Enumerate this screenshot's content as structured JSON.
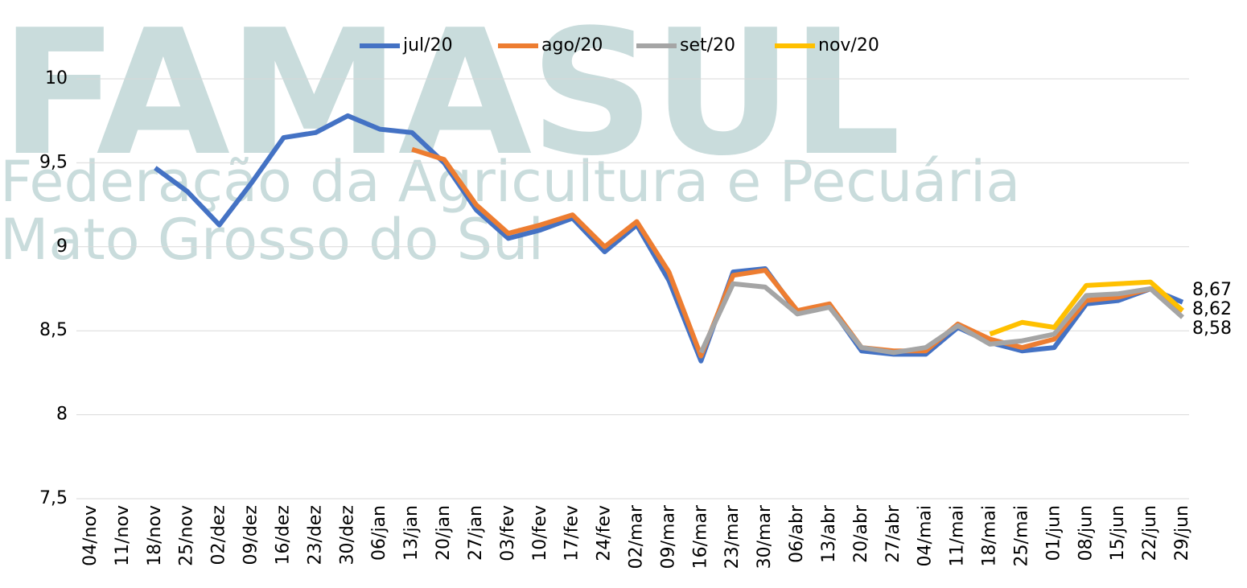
{
  "chart_data": {
    "type": "line",
    "watermark": [
      "FAMASUL",
      "Federação da Agricultura e Pecuária",
      "Mato Grosso do Sul"
    ],
    "categories": [
      "04/nov",
      "11/nov",
      "18/nov",
      "25/nov",
      "02/dez",
      "09/dez",
      "16/dez",
      "23/dez",
      "30/dez",
      "06/jan",
      "13/jan",
      "20/jan",
      "27/jan",
      "03/fev",
      "10/fev",
      "17/fev",
      "24/fev",
      "02/mar",
      "09/mar",
      "16/mar",
      "23/mar",
      "30/mar",
      "06/abr",
      "13/abr",
      "20/abr",
      "27/abr",
      "04/mai",
      "11/mai",
      "18/mai",
      "25/mai",
      "01/jun",
      "08/jun",
      "15/jun",
      "22/jun",
      "29/jun"
    ],
    "series": [
      {
        "name": "jul/20",
        "color": "#4472c4",
        "values": [
          null,
          null,
          9.47,
          9.33,
          9.13,
          9.38,
          9.65,
          9.68,
          9.78,
          9.7,
          9.68,
          9.5,
          9.22,
          9.05,
          9.1,
          9.17,
          8.97,
          9.13,
          8.8,
          8.32,
          8.85,
          8.87,
          8.61,
          8.65,
          8.38,
          8.36,
          8.36,
          8.52,
          8.43,
          8.38,
          8.4,
          8.66,
          8.68,
          8.75,
          8.67
        ],
        "value_labels": [
          null,
          null,
          null,
          null,
          null,
          null,
          null,
          null,
          null,
          null,
          null,
          null,
          null,
          null,
          null,
          null,
          null,
          null,
          null,
          null,
          null,
          null,
          null,
          null,
          null,
          null,
          null,
          null,
          null,
          null,
          null,
          null,
          null,
          null,
          "8,67"
        ]
      },
      {
        "name": "ago/20",
        "color": "#ed7d31",
        "values": [
          null,
          null,
          null,
          null,
          null,
          null,
          null,
          null,
          null,
          null,
          9.58,
          9.52,
          9.25,
          9.08,
          9.13,
          9.19,
          9.0,
          9.15,
          8.85,
          8.35,
          8.83,
          8.86,
          8.62,
          8.66,
          8.4,
          8.38,
          8.38,
          8.54,
          8.45,
          8.4,
          8.45,
          8.68,
          8.7,
          8.75,
          8.62
        ]
      },
      {
        "name": "set/20",
        "color": "#a5a5a5",
        "values": [
          null,
          null,
          null,
          null,
          null,
          null,
          null,
          null,
          null,
          null,
          null,
          null,
          null,
          null,
          null,
          null,
          null,
          null,
          null,
          8.37,
          8.78,
          8.76,
          8.6,
          8.64,
          8.4,
          8.37,
          8.4,
          8.53,
          8.42,
          8.44,
          8.48,
          8.71,
          8.72,
          8.75,
          8.58
        ],
        "value_labels": [
          null,
          null,
          null,
          null,
          null,
          null,
          null,
          null,
          null,
          null,
          null,
          null,
          null,
          null,
          null,
          null,
          null,
          null,
          null,
          null,
          null,
          null,
          null,
          null,
          null,
          null,
          null,
          null,
          null,
          null,
          null,
          null,
          null,
          null,
          "8,58"
        ]
      },
      {
        "name": "nov/20",
        "color": "#ffc000",
        "values": [
          null,
          null,
          null,
          null,
          null,
          null,
          null,
          null,
          null,
          null,
          null,
          null,
          null,
          null,
          null,
          null,
          null,
          null,
          null,
          null,
          null,
          null,
          null,
          null,
          null,
          null,
          null,
          null,
          8.48,
          8.55,
          8.52,
          8.77,
          8.78,
          8.79,
          8.62
        ],
        "value_labels": [
          null,
          null,
          null,
          null,
          null,
          null,
          null,
          null,
          null,
          null,
          null,
          null,
          null,
          null,
          null,
          null,
          null,
          null,
          null,
          null,
          null,
          null,
          null,
          null,
          null,
          null,
          null,
          null,
          null,
          null,
          null,
          null,
          null,
          null,
          "8,62"
        ]
      }
    ],
    "ylim": [
      7.5,
      10
    ],
    "yticks": [
      {
        "value": 7.5,
        "label": "7,5"
      },
      8,
      {
        "value": 8.5,
        "label": "8,5"
      },
      9,
      {
        "value": 9.5,
        "label": "9,5"
      },
      10
    ],
    "grid": true,
    "legend": "top"
  }
}
